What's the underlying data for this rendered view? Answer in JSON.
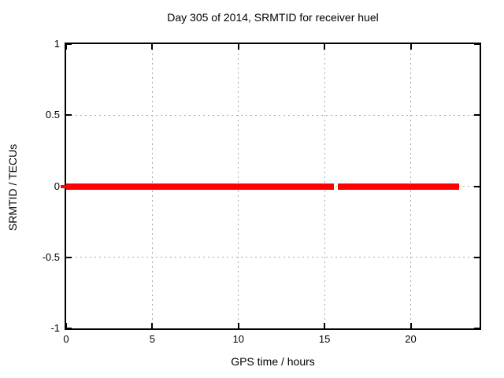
{
  "chart_data": {
    "type": "line",
    "title": "Day 305 of 2014, SRMTID for receiver huel",
    "xlabel": "GPS time / hours",
    "ylabel": "SRMTID / TECUs",
    "xlim": [
      0,
      24
    ],
    "ylim": [
      -1,
      1
    ],
    "xticks": [
      {
        "value": 0,
        "label": "0"
      },
      {
        "value": 5,
        "label": "5"
      },
      {
        "value": 10,
        "label": "10"
      },
      {
        "value": 15,
        "label": "15"
      },
      {
        "value": 20,
        "label": "20"
      }
    ],
    "yticks": [
      {
        "value": 1,
        "label": "1"
      },
      {
        "value": 0.5,
        "label": "0.5"
      },
      {
        "value": 0,
        "label": "0"
      },
      {
        "value": -0.5,
        "label": "-0.5"
      },
      {
        "value": -1,
        "label": "-1"
      }
    ],
    "grid": true,
    "legend_position": "none",
    "series": [
      {
        "name": "SRMTID",
        "color": "#ff0000",
        "style": "thick-horizontal-line",
        "segments": [
          {
            "x_start": 0,
            "x_end": 15.55,
            "y": 0
          },
          {
            "x_start": 15.78,
            "x_end": 22.8,
            "y": 0
          }
        ]
      }
    ],
    "colors": {
      "background": "#ffffff",
      "border": "#000000",
      "grid": "#a8a8a8",
      "text": "#000000"
    }
  }
}
